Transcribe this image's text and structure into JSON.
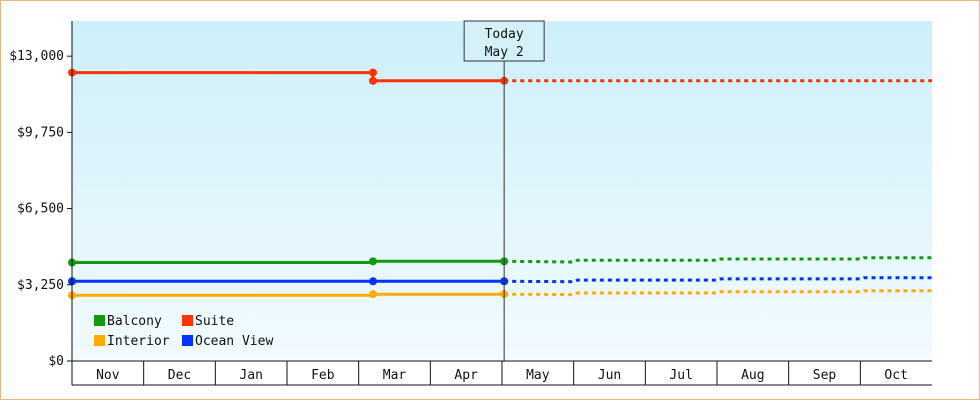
{
  "chart_data": {
    "type": "line",
    "title": "",
    "xlabel": "",
    "ylabel": "",
    "ylim": [
      0,
      14500
    ],
    "y_ticks": [
      {
        "value": 0,
        "label": "$0"
      },
      {
        "value": 3250,
        "label": "$3,250"
      },
      {
        "value": 6500,
        "label": "$6,500"
      },
      {
        "value": 9750,
        "label": "$9,750"
      },
      {
        "value": 13000,
        "label": "$13,000"
      }
    ],
    "months": [
      "Nov",
      "Dec",
      "Jan",
      "Feb",
      "Mar",
      "Apr",
      "May",
      "Jun",
      "Jul",
      "Aug",
      "Sep",
      "Oct"
    ],
    "today": {
      "label_line1": "Today",
      "label_line2": "May 2",
      "x": 6.03
    },
    "legend": {
      "placement": "bottom-left"
    },
    "background": {
      "top": "#cdeff9",
      "bottom": "#f2fbfe"
    },
    "series": [
      {
        "name": "Suite",
        "color": "#ff3300",
        "solid": [
          [
            0,
            12300
          ],
          [
            4.2,
            12300
          ],
          [
            4.2,
            11950
          ],
          [
            6.03,
            11950
          ]
        ],
        "markers": [
          [
            0,
            12300
          ],
          [
            4.2,
            12300
          ],
          [
            4.2,
            11950
          ],
          [
            6.03,
            11950
          ]
        ],
        "forecast": [
          [
            6.03,
            11950
          ],
          [
            12,
            11950
          ]
        ]
      },
      {
        "name": "Balcony",
        "color": "#119911",
        "solid": [
          [
            0,
            4200
          ],
          [
            4.2,
            4200
          ],
          [
            4.2,
            4250
          ],
          [
            6.03,
            4250
          ]
        ],
        "markers": [
          [
            0,
            4200
          ],
          [
            4.2,
            4250
          ],
          [
            6.03,
            4250
          ]
        ],
        "forecast": [
          [
            6.03,
            4250
          ],
          [
            7,
            4220
          ],
          [
            7.05,
            4300
          ],
          [
            9,
            4300
          ],
          [
            9.05,
            4350
          ],
          [
            11,
            4350
          ],
          [
            11.05,
            4400
          ],
          [
            12,
            4400
          ]
        ]
      },
      {
        "name": "Ocean View",
        "color": "#0033ff",
        "solid": [
          [
            0,
            3400
          ],
          [
            4.2,
            3400
          ],
          [
            6.03,
            3400
          ]
        ],
        "markers": [
          [
            0,
            3400
          ],
          [
            4.2,
            3400
          ],
          [
            6.03,
            3400
          ]
        ],
        "forecast": [
          [
            6.03,
            3400
          ],
          [
            7,
            3380
          ],
          [
            7.05,
            3450
          ],
          [
            9,
            3450
          ],
          [
            9.05,
            3500
          ],
          [
            11,
            3500
          ],
          [
            11.05,
            3550
          ],
          [
            12,
            3550
          ]
        ]
      },
      {
        "name": "Interior",
        "color": "#ffaa00",
        "solid": [
          [
            0,
            2800
          ],
          [
            4.2,
            2800
          ],
          [
            4.2,
            2850
          ],
          [
            6.03,
            2850
          ]
        ],
        "markers": [
          [
            0,
            2800
          ],
          [
            4.2,
            2850
          ],
          [
            6.03,
            2850
          ]
        ],
        "forecast": [
          [
            6.03,
            2850
          ],
          [
            7,
            2830
          ],
          [
            7.05,
            2900
          ],
          [
            9,
            2900
          ],
          [
            9.05,
            2950
          ],
          [
            11,
            2950
          ],
          [
            11.05,
            3000
          ],
          [
            12,
            3000
          ]
        ]
      }
    ],
    "legend_order": [
      "Balcony",
      "Suite",
      "Interior",
      "Ocean View"
    ]
  }
}
